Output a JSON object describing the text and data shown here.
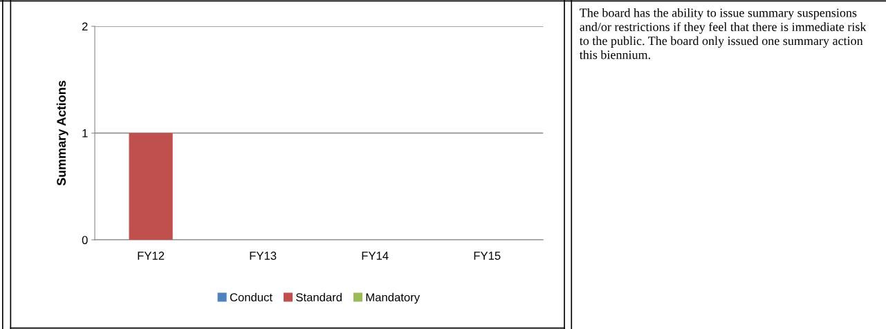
{
  "chart_data": {
    "type": "bar",
    "ylabel": "Summary Actions",
    "categories": [
      "FY12",
      "FY13",
      "FY14",
      "FY15"
    ],
    "series": [
      {
        "name": "Conduct",
        "color": "#4f81bd",
        "values": [
          0,
          0,
          0,
          0
        ]
      },
      {
        "name": "Standard",
        "color": "#c0504d",
        "values": [
          1,
          0,
          0,
          0
        ]
      },
      {
        "name": "Mandatory",
        "color": "#9bbb59",
        "values": [
          0,
          0,
          0,
          0
        ]
      }
    ],
    "ylim": [
      0,
      2
    ],
    "yticks": [
      0,
      1,
      2
    ],
    "grid": "y",
    "legend": "bottom",
    "annotations": [
      "The board has the ability to issue summary suspensions and/or restrictions if they feel that there is immediate risk to the public. The board only issued one summary action this biennium."
    ]
  }
}
